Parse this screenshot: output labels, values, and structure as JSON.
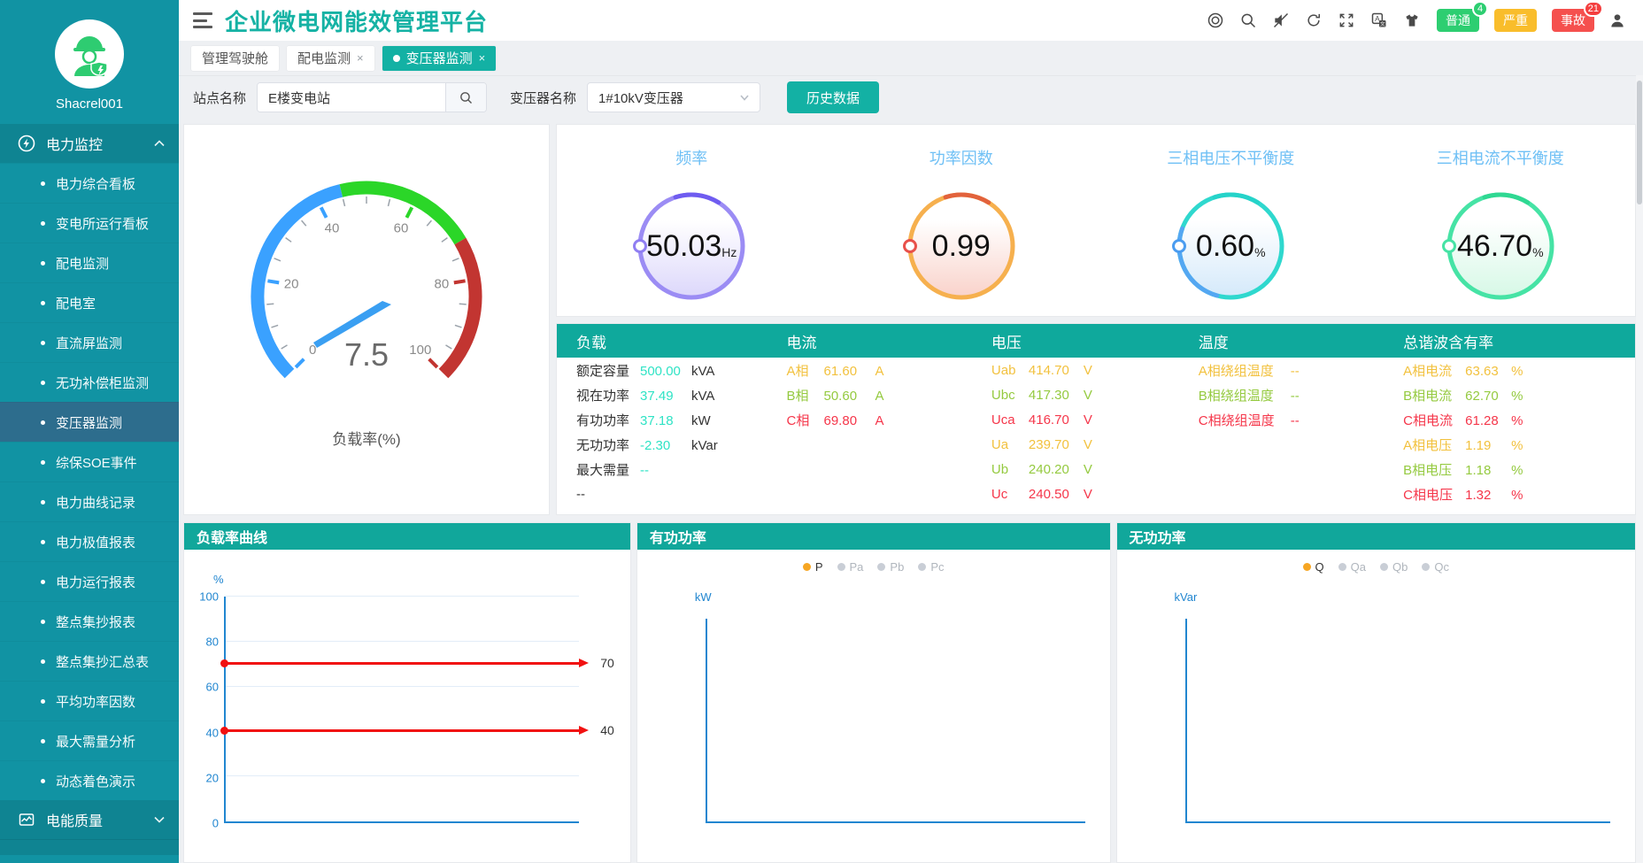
{
  "colors": {
    "teal": "#13b1a4",
    "table_header": "#0fa99c",
    "panel_header": "#11a79b",
    "phase_a": "#f2c13e",
    "phase_b": "#95ca40",
    "phase_c": "#f5364a",
    "load_value": "#2fe3c5",
    "axis_blue": "#2186d0",
    "markline_red": "#f11111"
  },
  "sidebar": {
    "username": "Shacrel001",
    "power_section": {
      "label": "电力监控",
      "icon": "power-bolt-icon",
      "state": "expanded"
    },
    "items": [
      "电力综合看板",
      "变电所运行看板",
      "配电监测",
      "配电室",
      "直流屏监测",
      "无功补偿柜监测",
      "变压器监测",
      "综保SOE事件",
      "电力曲线记录",
      "电力极值报表",
      "电力运行报表",
      "整点集抄报表",
      "整点集抄汇总表",
      "平均功率因数",
      "最大需量分析",
      "动态着色演示"
    ],
    "active_item": "变压器监测",
    "quality_section": {
      "label": "电能质量",
      "icon": "quality-chart-icon",
      "state": "collapsed"
    }
  },
  "header": {
    "title": "企业微电网能效管理平台",
    "icons": [
      "help-ring-icon",
      "search-icon",
      "volume-muted-icon",
      "refresh-icon",
      "fullscreen-icon",
      "translate-icon",
      "theme-shirt-icon",
      "user-icon"
    ],
    "badges": [
      {
        "label": "普通",
        "count": "4",
        "tone": "green"
      },
      {
        "label": "严重",
        "count": "",
        "tone": "amber"
      },
      {
        "label": "事故",
        "count": "21",
        "tone": "red"
      }
    ]
  },
  "tabs": [
    {
      "label": "管理驾驶舱",
      "closable": false,
      "active": false
    },
    {
      "label": "配电监测",
      "closable": true,
      "active": false
    },
    {
      "label": "变压器监测",
      "closable": true,
      "active": true
    }
  ],
  "filters": {
    "site_label": "站点名称",
    "site_value": "E楼变电站",
    "transformer_label": "变压器名称",
    "transformer_value": "1#10kV变压器",
    "history_button": "历史数据"
  },
  "gauge": {
    "label": "负载率(%)",
    "value": "7.5",
    "min": 0,
    "max": 100,
    "major_ticks": [
      0,
      20,
      40,
      60,
      80,
      100
    ],
    "zones": [
      {
        "from": 0,
        "to": 45,
        "color": "#3aa1ff"
      },
      {
        "from": 45,
        "to": 72,
        "color": "#2bd628"
      },
      {
        "from": 72,
        "to": 100,
        "color": "#c23531"
      }
    ]
  },
  "kpis": [
    {
      "title": "频率",
      "value": "50.03",
      "unit": "Hz",
      "ring": "#a austere",
      "ring_color": "#9b8cf4",
      "accent": "#6f5cf0",
      "fill": "#dcd7fb",
      "marker": "#8f7ef2",
      "secondary": ""
    },
    {
      "title": "功率因数",
      "value": "0.99",
      "unit": "",
      "ring_color": "#f6b04e",
      "accent": "#e2623c",
      "fill": "#f9d2ca",
      "marker": "#e8504a",
      "secondary": ""
    },
    {
      "title": "三相电压不平衡度",
      "value": "0.60",
      "unit": "%",
      "ring_color": "#2fd8ce",
      "accent": "#25d3c9",
      "fill": "#d4e9fa",
      "marker": "#4a9cf0",
      "secondary": "#54a7f2"
    },
    {
      "title": "三相电流不平衡度",
      "value": "46.70",
      "unit": "%",
      "ring_color": "#46e3a5",
      "accent": "#2fd892",
      "fill": "#d6f8e6",
      "marker": "#46e3a5",
      "secondary": ""
    }
  ],
  "table": {
    "columns": [
      {
        "header": "负载",
        "rows": [
          {
            "label": "额定容量",
            "value": "500.00",
            "unit": "kVA",
            "tone": "load"
          },
          {
            "label": "视在功率",
            "value": "37.49",
            "unit": "kVA",
            "tone": "load"
          },
          {
            "label": "有功功率",
            "value": "37.18",
            "unit": "kW",
            "tone": "load"
          },
          {
            "label": "无功功率",
            "value": "-2.30",
            "unit": "kVar",
            "tone": "load"
          },
          {
            "label": "最大需量",
            "value": "--",
            "unit": "",
            "tone": "load"
          },
          {
            "label": "--",
            "value": "",
            "unit": "",
            "tone": "load"
          }
        ]
      },
      {
        "header": "电流",
        "rows": [
          {
            "label": "A相",
            "value": "61.60",
            "unit": "A",
            "tone": "a"
          },
          {
            "label": "B相",
            "value": "50.60",
            "unit": "A",
            "tone": "b"
          },
          {
            "label": "C相",
            "value": "69.80",
            "unit": "A",
            "tone": "c"
          }
        ]
      },
      {
        "header": "电压",
        "rows": [
          {
            "label": "Uab",
            "value": "414.70",
            "unit": "V",
            "tone": "a"
          },
          {
            "label": "Ubc",
            "value": "417.30",
            "unit": "V",
            "tone": "b"
          },
          {
            "label": "Uca",
            "value": "416.70",
            "unit": "V",
            "tone": "c"
          },
          {
            "label": "Ua",
            "value": "239.70",
            "unit": "V",
            "tone": "a"
          },
          {
            "label": "Ub",
            "value": "240.20",
            "unit": "V",
            "tone": "b"
          },
          {
            "label": "Uc",
            "value": "240.50",
            "unit": "V",
            "tone": "c"
          }
        ]
      },
      {
        "header": "温度",
        "rows": [
          {
            "label": "A相绕组温度",
            "value": "--",
            "unit": "",
            "tone": "a"
          },
          {
            "label": "B相绕组温度",
            "value": "--",
            "unit": "",
            "tone": "b"
          },
          {
            "label": "C相绕组温度",
            "value": "--",
            "unit": "",
            "tone": "c"
          }
        ]
      },
      {
        "header": "总谐波含有率",
        "rows": [
          {
            "label": "A相电流",
            "value": "63.63",
            "unit": "%",
            "tone": "a"
          },
          {
            "label": "B相电流",
            "value": "62.70",
            "unit": "%",
            "tone": "b"
          },
          {
            "label": "C相电流",
            "value": "61.28",
            "unit": "%",
            "tone": "c"
          },
          {
            "label": "A相电压",
            "value": "1.19",
            "unit": "%",
            "tone": "a"
          },
          {
            "label": "B相电压",
            "value": "1.18",
            "unit": "%",
            "tone": "b"
          },
          {
            "label": "C相电压",
            "value": "1.32",
            "unit": "%",
            "tone": "c"
          }
        ]
      }
    ]
  },
  "chart_data": [
    {
      "type": "gauge",
      "title": "负载率(%)",
      "value": 7.5,
      "min": 0,
      "max": 100
    },
    {
      "type": "ring",
      "title": "频率",
      "value": 50.03,
      "unit": "Hz"
    },
    {
      "type": "ring",
      "title": "功率因数",
      "value": 0.99,
      "unit": ""
    },
    {
      "type": "ring",
      "title": "三相电压不平衡度",
      "value": 0.6,
      "unit": "%"
    },
    {
      "type": "ring",
      "title": "三相电流不平衡度",
      "value": 46.7,
      "unit": "%"
    },
    {
      "type": "line",
      "title": "负载率曲线",
      "ylabel": "%",
      "ylim": [
        0,
        100
      ],
      "yticks": [
        0,
        20,
        40,
        60,
        80,
        100
      ],
      "grid": true,
      "series": [],
      "marklines": [
        {
          "value": 70,
          "label": "70"
        },
        {
          "value": 40,
          "label": "40"
        }
      ],
      "legend": []
    },
    {
      "type": "line",
      "title": "有功功率",
      "ylabel": "kW",
      "series": [],
      "legend": [
        {
          "label": "P",
          "active": true
        },
        {
          "label": "Pa",
          "active": false
        },
        {
          "label": "Pb",
          "active": false
        },
        {
          "label": "Pc",
          "active": false
        }
      ]
    },
    {
      "type": "line",
      "title": "无功功率",
      "ylabel": "kVar",
      "series": [],
      "legend": [
        {
          "label": "Q",
          "active": true
        },
        {
          "label": "Qa",
          "active": false
        },
        {
          "label": "Qb",
          "active": false
        },
        {
          "label": "Qc",
          "active": false
        }
      ]
    }
  ],
  "charts": [
    {
      "title": "负载率曲线"
    },
    {
      "title": "有功功率"
    },
    {
      "title": "无功功率"
    }
  ]
}
